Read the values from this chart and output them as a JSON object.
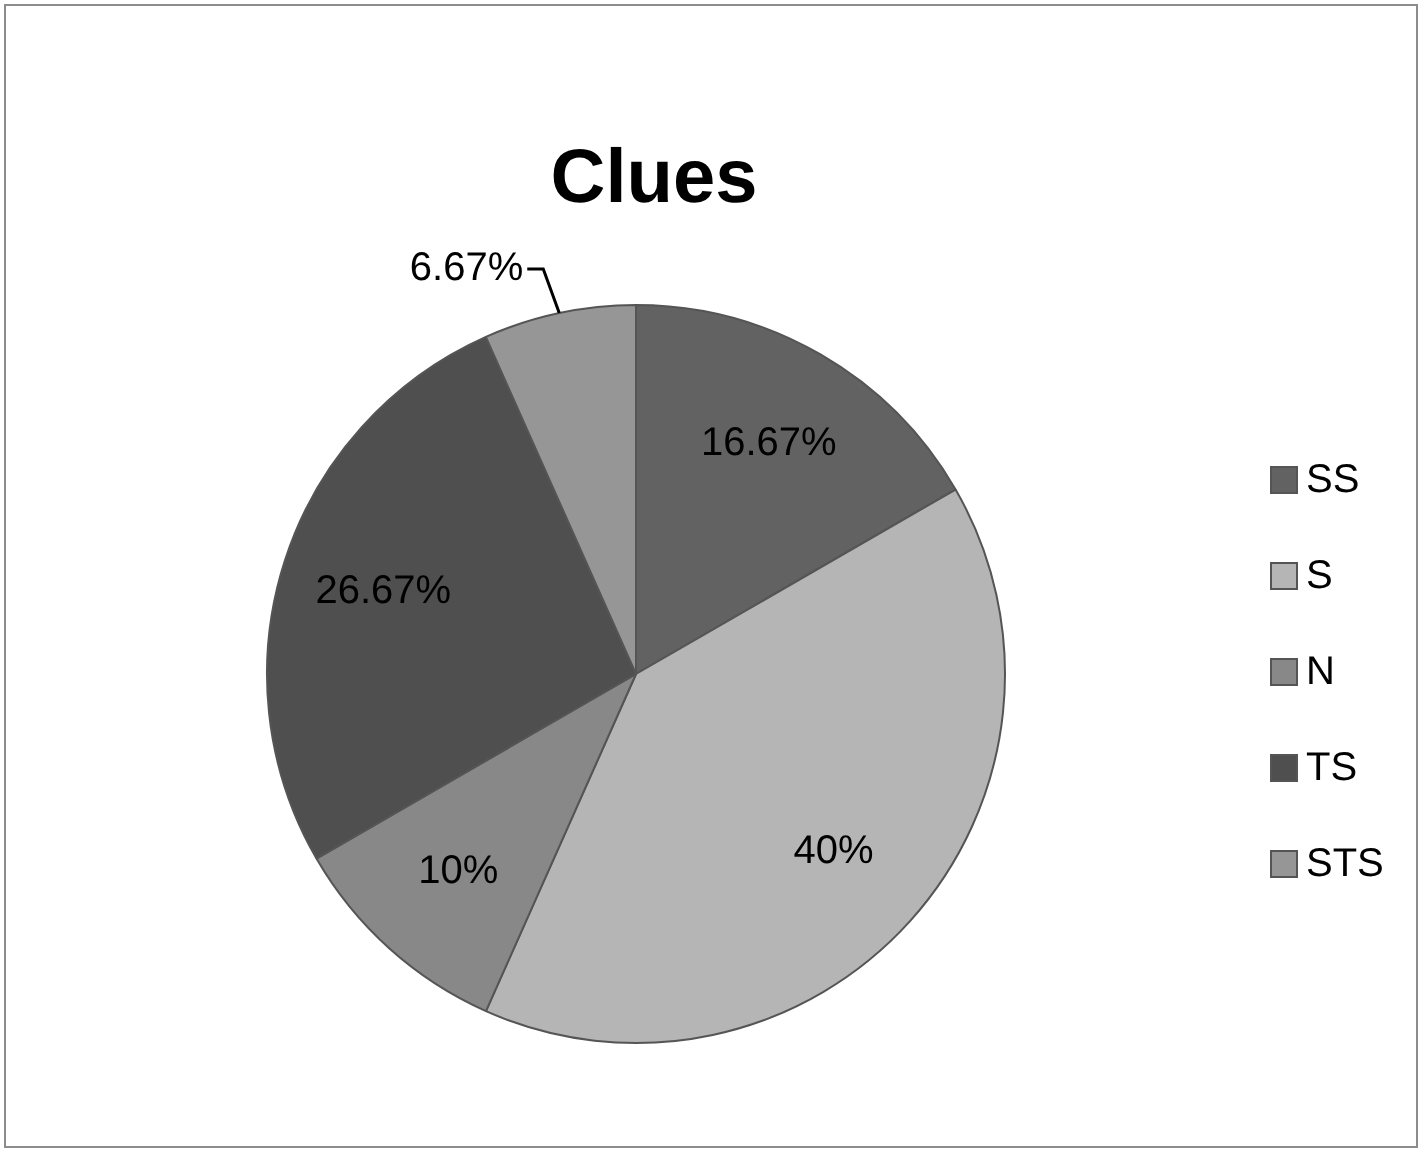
{
  "chart_data": {
    "type": "pie",
    "title": "Clues",
    "categories": [
      "SS",
      "S",
      "N",
      "TS",
      "STS"
    ],
    "values": [
      16.67,
      40,
      10,
      26.67,
      6.67
    ],
    "value_labels": [
      "16.67%",
      "40%",
      "10%",
      "26.67%",
      "6.67%"
    ],
    "colors": [
      "#626262",
      "#b5b5b5",
      "#888888",
      "#4f4f4f",
      "#969696"
    ],
    "legend": "right"
  }
}
